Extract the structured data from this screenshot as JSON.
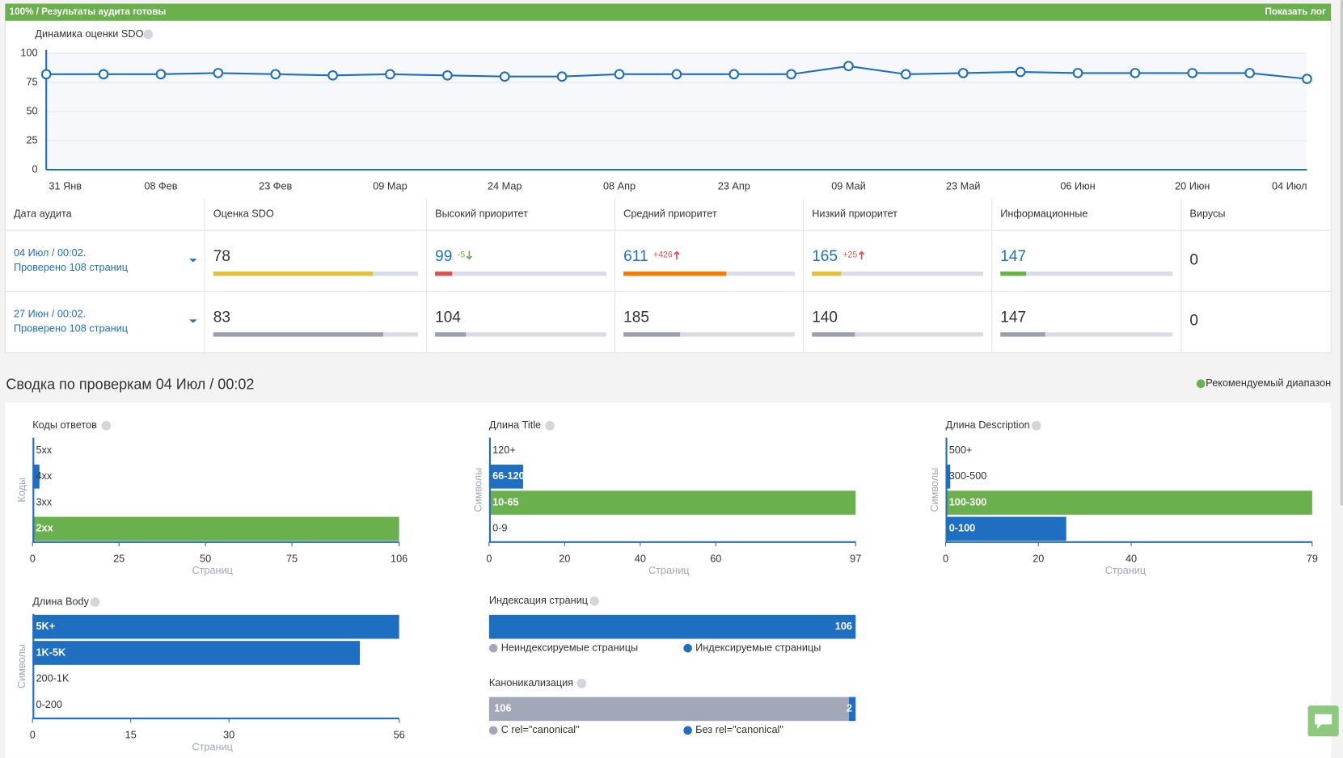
{
  "header": {
    "status": "100% / Результаты аудита готовы",
    "log_button": "Показать лог"
  },
  "chart_data": [
    {
      "type": "line",
      "title": "Динамика оценки SDO",
      "categories": [
        "31 Янв",
        null,
        "08 Фев",
        null,
        "23 Фев",
        null,
        "09 Мар",
        null,
        "24 Мар",
        null,
        "08 Апр",
        null,
        "23 Апр",
        null,
        "09 Май",
        null,
        "23 Май",
        null,
        "06 Июн",
        null,
        "20 Июн",
        null,
        "04 Июл"
      ],
      "values": [
        82,
        82,
        82,
        83,
        82,
        81,
        82,
        81,
        80,
        80,
        82,
        82,
        82,
        82,
        89,
        82,
        83,
        84,
        83,
        83,
        83,
        83,
        78
      ],
      "color": "#1e6fc1",
      "ylim": [
        0,
        100
      ],
      "yticks": [
        0,
        25,
        50,
        75,
        100
      ],
      "grid": true
    },
    {
      "type": "barh",
      "title": "Коды ответов",
      "y_label": "Коды",
      "x_label": "Страниц",
      "categories": [
        "5xx",
        "4xx",
        "3xx",
        "2xx"
      ],
      "values": [
        0,
        2,
        0,
        106
      ],
      "colors": [
        "#1e6fc1",
        "#1e6fc1",
        "#1e6fc1",
        "#6ab04c"
      ],
      "xlim": [
        0,
        106
      ],
      "xticks": [
        0,
        25,
        50,
        75,
        106
      ]
    },
    {
      "type": "barh",
      "title": "Длина Title",
      "y_label": "Символы",
      "x_label": "Страниц",
      "categories": [
        "120+",
        "66-120",
        "10-65",
        "0-9"
      ],
      "values": [
        0,
        9,
        97,
        0
      ],
      "colors": [
        "#1e6fc1",
        "#1e6fc1",
        "#6ab04c",
        "#1e6fc1"
      ],
      "xlim": [
        0,
        97
      ],
      "xticks": [
        0,
        20,
        40,
        60,
        97
      ]
    },
    {
      "type": "barh",
      "title": "Длина Description",
      "y_label": "Символы",
      "x_label": "Страниц",
      "categories": [
        "500+",
        "300-500",
        "100-300",
        "0-100"
      ],
      "values": [
        0,
        1,
        79,
        26
      ],
      "colors": [
        "#1e6fc1",
        "#1e6fc1",
        "#6ab04c",
        "#1e6fc1"
      ],
      "xlim": [
        0,
        79
      ],
      "xticks": [
        0,
        20,
        40,
        79
      ]
    },
    {
      "type": "barh",
      "title": "Длина Body",
      "y_label": "Символы",
      "x_label": "Страниц",
      "categories": [
        "5K+",
        "1K-5K",
        "200-1K",
        "0-200"
      ],
      "values": [
        56,
        50,
        0,
        0
      ],
      "colors": [
        "#1e6fc1",
        "#1e6fc1",
        "#1e6fc1",
        "#1e6fc1"
      ],
      "xlim": [
        0,
        56
      ],
      "xticks": [
        0,
        15,
        30,
        56
      ]
    },
    {
      "type": "stacked",
      "title": "Индексация страниц",
      "series": [
        {
          "name": "Неиндексируемые страницы",
          "color": "#a3a8b8",
          "values": [
            0
          ]
        },
        {
          "name": "Индексируемые страницы",
          "color": "#1e6fc1",
          "values": [
            106
          ]
        }
      ]
    },
    {
      "type": "stacked",
      "title": "Каноникализация",
      "series": [
        {
          "name": "С rel=\"canonical\"",
          "color": "#a3a8b8",
          "values": [
            106
          ]
        },
        {
          "name": "Без rel=\"canonical\"",
          "color": "#1e6fc1",
          "values": [
            2
          ]
        }
      ]
    }
  ],
  "table": {
    "columns": [
      "Дата аудита",
      "Оценка SDO",
      "Высокий приоритет",
      "Средний приоритет",
      "Низкий приоритет",
      "Информационные",
      "Вирусы"
    ],
    "rows": [
      {
        "date": "04 Июл / 00:02.",
        "pages": "Проверено 108 страниц",
        "current": true,
        "cells": [
          {
            "value": 78,
            "bar": 78,
            "color": "#e3c13b"
          },
          {
            "value": 99,
            "delta": "-5",
            "bar": 10,
            "color": "#d9534f"
          },
          {
            "value": 611,
            "delta": "+426",
            "bar": 60,
            "color": "#f57c00"
          },
          {
            "value": 165,
            "delta": "+25",
            "bar": 17,
            "color": "#e3c13b"
          },
          {
            "value": 147,
            "bar": 15,
            "color": "#6ab04c"
          },
          {
            "value": 0
          }
        ]
      },
      {
        "date": "27 Июн / 00:02.",
        "pages": "Проверено 108 страниц",
        "current": false,
        "cells": [
          {
            "value": 83,
            "bar": 83,
            "color": "#9a9fad"
          },
          {
            "value": 104,
            "bar": 18,
            "color": "#9a9fad"
          },
          {
            "value": 185,
            "bar": 33,
            "color": "#9a9fad"
          },
          {
            "value": 140,
            "bar": 25,
            "color": "#9a9fad"
          },
          {
            "value": 147,
            "bar": 26,
            "color": "#9a9fad"
          },
          {
            "value": 0
          }
        ]
      }
    ]
  },
  "summary": {
    "title": "Сводка по проверкам 04 Июл / 00:02",
    "legend": "Рекомендуемый диапазон",
    "legend_color": "#6ab04c"
  }
}
